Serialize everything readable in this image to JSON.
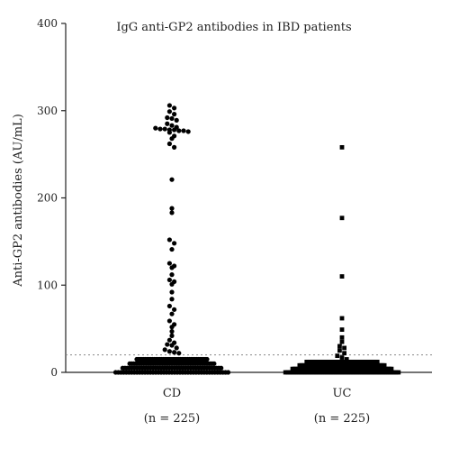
{
  "chart_data": {
    "type": "scatter",
    "title": "IgG anti-GP2 antibodies in IBD patients",
    "ylabel": "Anti-GP2 antibodies (AU/mL)",
    "xlabel": "",
    "ylim": [
      0,
      400
    ],
    "yticks": [
      0,
      100,
      200,
      300,
      400
    ],
    "grid": false,
    "legend": "none",
    "cutoff": 20,
    "categories": [
      "CD",
      "UC"
    ],
    "group_counts": [
      "(n = 225)",
      "(n = 225)"
    ],
    "series": [
      {
        "category": "CD",
        "marker": "circle",
        "color": "#000000",
        "outliers": [
          306,
          303,
          299,
          296,
          292,
          291,
          289,
          285,
          283,
          281,
          280,
          279,
          279,
          278,
          278,
          277,
          277,
          276,
          275,
          271,
          268,
          262,
          258,
          221,
          188,
          183,
          152,
          148,
          141,
          125,
          122,
          120,
          112,
          106,
          104,
          101,
          92,
          84,
          76,
          72,
          67,
          59,
          55,
          52,
          47,
          42,
          37,
          34,
          32,
          31,
          28,
          26,
          24,
          23,
          22
        ],
        "bulk_range": [
          0,
          15
        ],
        "bulk_count": 170
      },
      {
        "category": "UC",
        "marker": "square",
        "color": "#000000",
        "outliers": [
          258,
          177,
          110,
          62,
          49,
          40,
          35,
          30,
          28,
          25,
          22,
          19,
          17,
          15
        ],
        "bulk_range": [
          0,
          12
        ],
        "bulk_count": 211
      }
    ]
  }
}
